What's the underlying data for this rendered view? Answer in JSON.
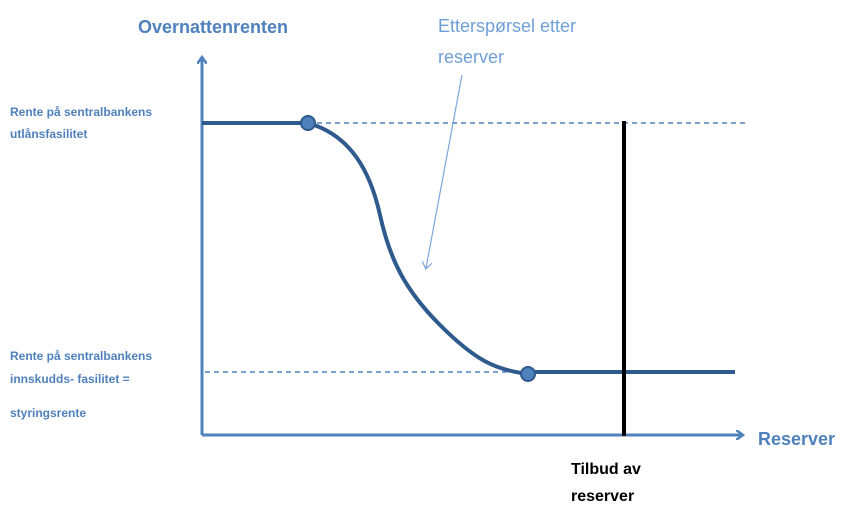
{
  "y_axis_label": "Overnattenrenten",
  "x_axis_label": "Reserver",
  "demand_label": {
    "lines": [
      "Etterspørsel etter",
      "reserver"
    ]
  },
  "upper_rate_label": {
    "lines": [
      "Rente på sentralbankens",
      "utlånsfasilitet"
    ]
  },
  "lower_rate_label": {
    "lines": [
      "Rente på sentralbankens",
      "innskudds- fasilitet =",
      "styringsrente"
    ]
  },
  "supply_label": {
    "lines": [
      "Tilbud av",
      "reserver"
    ]
  }
}
